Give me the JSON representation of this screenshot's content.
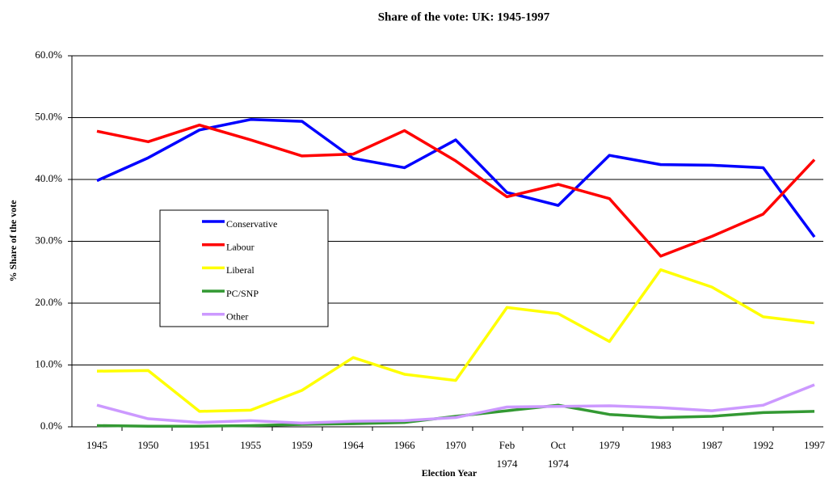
{
  "chart_data": {
    "type": "line",
    "title": "Share of the vote: UK: 1945-1997",
    "x_label": "Election Year",
    "y_label": "% Share of the vote",
    "categories": [
      "1945",
      "1950",
      "1951",
      "1955",
      "1959",
      "1964",
      "1966",
      "1970",
      "Feb 1974",
      "Oct 1974",
      "1979",
      "1983",
      "1987",
      "1992",
      "1997"
    ],
    "series": [
      {
        "name": "Conservative",
        "color": "#0000ff",
        "values": [
          39.8,
          43.5,
          48.0,
          49.7,
          49.4,
          43.4,
          41.9,
          46.4,
          37.9,
          35.8,
          43.9,
          42.4,
          42.3,
          41.9,
          30.7
        ]
      },
      {
        "name": "Labour",
        "color": "#ff0000",
        "values": [
          47.8,
          46.1,
          48.8,
          46.4,
          43.8,
          44.1,
          47.9,
          43.0,
          37.2,
          39.2,
          36.9,
          27.6,
          30.8,
          34.4,
          43.2
        ]
      },
      {
        "name": "Liberal",
        "color": "#ffff00",
        "values": [
          9.0,
          9.1,
          2.5,
          2.7,
          5.9,
          11.2,
          8.5,
          7.5,
          19.3,
          18.3,
          13.8,
          25.4,
          22.6,
          17.8,
          16.8
        ]
      },
      {
        "name": "PC/SNP",
        "color": "#339933",
        "values": [
          0.2,
          0.1,
          0.1,
          0.2,
          0.4,
          0.5,
          0.7,
          1.7,
          2.6,
          3.5,
          2.0,
          1.5,
          1.7,
          2.3,
          2.5
        ]
      },
      {
        "name": "Other",
        "color": "#cc99ff",
        "values": [
          3.5,
          1.3,
          0.7,
          1.0,
          0.6,
          0.9,
          1.0,
          1.5,
          3.2,
          3.3,
          3.4,
          3.1,
          2.6,
          3.5,
          6.8
        ]
      }
    ],
    "ylim": [
      0,
      60
    ],
    "yticks": [
      {
        "value": 0,
        "label": "0.0%"
      },
      {
        "value": 10,
        "label": "10.0%"
      },
      {
        "value": 20,
        "label": "20.0%"
      },
      {
        "value": 30,
        "label": "30.0%"
      },
      {
        "value": 40,
        "label": "40.0%"
      },
      {
        "value": 50,
        "label": "50.0%"
      },
      {
        "value": 60,
        "label": "60.0%"
      }
    ],
    "grid": true,
    "legend": "left"
  }
}
